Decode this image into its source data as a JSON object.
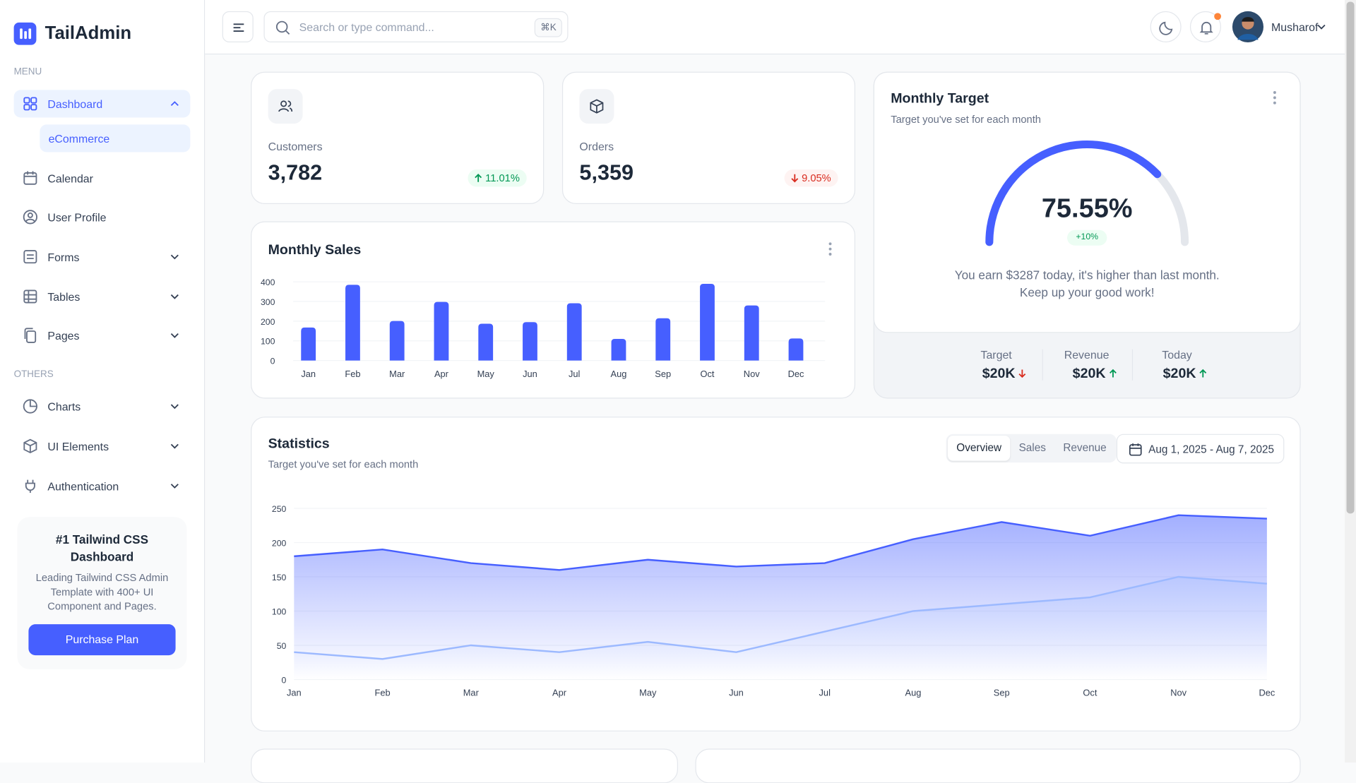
{
  "sidebar": {
    "brand": "TailAdmin",
    "menu_label": "MENU",
    "menu": [
      "Dashboard",
      "Calendar",
      "User Profile",
      "Forms",
      "Tables",
      "Pages"
    ],
    "submenu": "eCommerce",
    "others_label": "OTHERS",
    "others": [
      "Charts",
      "UI Elements",
      "Authentication"
    ],
    "promo": {
      "title": "#1 Tailwind CSS Dashboard",
      "text": "Leading Tailwind CSS Admin Template with 400+ UI Component and Pages.",
      "button": "Purchase Plan"
    }
  },
  "header": {
    "search_placeholder": "Search or type command...",
    "shortcut": "⌘K",
    "user": "Musharof"
  },
  "metrics": [
    {
      "label": "Customers",
      "value": "3,782",
      "change": "11.01%",
      "trend": "up"
    },
    {
      "label": "Orders",
      "value": "5,359",
      "change": "9.05%",
      "trend": "down"
    }
  ],
  "monthly_target": {
    "title": "Monthly Target",
    "subtitle": "Target you've set for each month",
    "progress": {
      "value": 75.55,
      "label": "75.55%"
    },
    "change": "+10%",
    "message": [
      "You earn $3287 today, it's higher than last month.",
      "Keep up your good work!"
    ],
    "color": "#465fff",
    "items": [
      {
        "label": "Target",
        "value": "$20K",
        "trend": "down"
      },
      {
        "label": "Revenue",
        "value": "$20K",
        "trend": "up"
      },
      {
        "label": "Today",
        "value": "$20K",
        "trend": "up"
      }
    ]
  },
  "monthly_sales": {
    "type": "bar",
    "title": "Monthly Sales",
    "categories": [
      "Jan",
      "Feb",
      "Mar",
      "Apr",
      "May",
      "Jun",
      "Jul",
      "Aug",
      "Sep",
      "Oct",
      "Nov",
      "Dec"
    ],
    "values": [
      168,
      385,
      201,
      298,
      187,
      195,
      291,
      110,
      215,
      390,
      280,
      112
    ],
    "color": "#465fff",
    "ylim": [
      0,
      400
    ],
    "yticks": [
      0,
      100,
      200,
      300,
      400
    ],
    "grid": true
  },
  "statistics": {
    "type": "area",
    "title": "Statistics",
    "subtitle": "Target you've set for each month",
    "tabs": [
      "Overview",
      "Sales",
      "Revenue"
    ],
    "active_tab": 0,
    "date_range": "Aug 1, 2025 - Aug 7, 2025",
    "categories": [
      "Jan",
      "Feb",
      "Mar",
      "Apr",
      "May",
      "Jun",
      "Jul",
      "Aug",
      "Sep",
      "Oct",
      "Nov",
      "Dec"
    ],
    "series": [
      {
        "color": "#465fff",
        "values": [
          180,
          190,
          170,
          160,
          175,
          165,
          170,
          205,
          230,
          210,
          240,
          235
        ]
      },
      {
        "color": "#9cb9ff",
        "values": [
          40,
          30,
          50,
          40,
          55,
          40,
          70,
          100,
          110,
          120,
          150,
          140
        ]
      }
    ],
    "ylim": [
      0,
      250
    ],
    "yticks": [
      0,
      50,
      100,
      150,
      200,
      250
    ],
    "grid": true
  }
}
